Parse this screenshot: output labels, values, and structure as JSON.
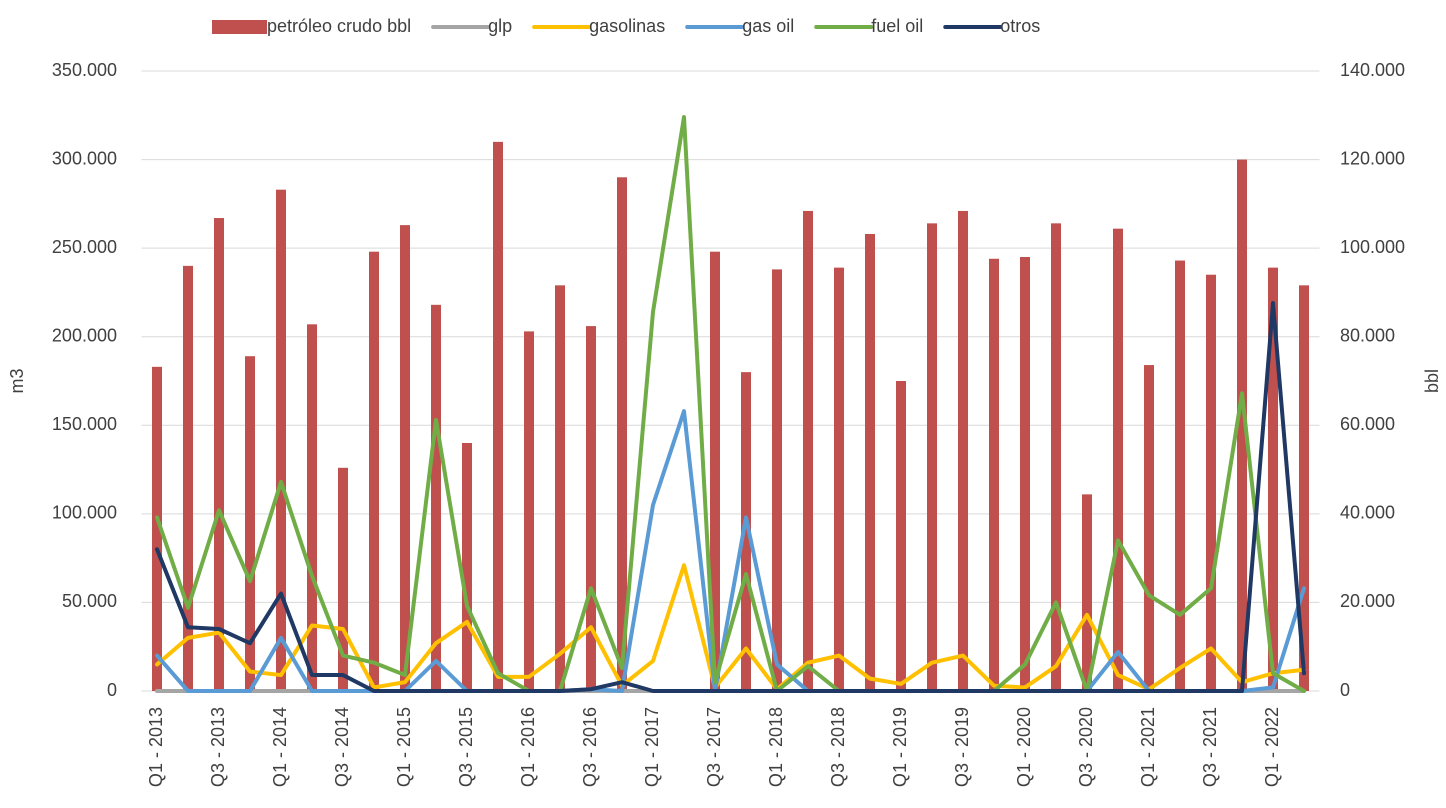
{
  "chart_data": {
    "type": "bar_line",
    "y_label": "m3",
    "y2_label": "bbl",
    "categories": [
      "Q1 - 2013",
      null,
      "Q3 - 2013",
      null,
      "Q1 - 2014",
      null,
      "Q3 - 2014",
      null,
      "Q1 - 2015",
      null,
      "Q3 - 2015",
      null,
      "Q1 - 2016",
      null,
      "Q3 - 2016",
      null,
      "Q1 - 2017",
      null,
      "Q3 - 2017",
      null,
      "Q1 - 2018",
      null,
      "Q3 - 2018",
      null,
      "Q1 - 2019",
      null,
      "Q3 - 2019",
      null,
      "Q1 - 2020",
      null,
      "Q3 - 2020",
      null,
      "Q1 - 2021",
      null,
      "Q3 - 2021",
      null,
      "Q1 - 2022",
      null
    ],
    "series": [
      {
        "name": "petróleo crudo bbl",
        "type": "bar",
        "axis": "y2",
        "color": "#c0504d",
        "values": [
          73200,
          96000,
          106800,
          75600,
          113200,
          82800,
          50400,
          99200,
          105200,
          87200,
          56000,
          124000,
          81200,
          91600,
          82400,
          116000,
          0,
          0,
          99200,
          72000,
          95200,
          108400,
          95600,
          103200,
          70000,
          105600,
          108400,
          97600,
          98000,
          105600,
          44400,
          104400,
          73600,
          97200,
          94000,
          120000,
          95600,
          91600
        ]
      },
      {
        "name": "glp",
        "type": "line",
        "color": "#a5a5a5",
        "values": [
          0,
          0,
          0,
          0,
          0,
          0,
          0,
          0,
          0,
          0,
          0,
          0,
          0,
          0,
          0,
          0,
          0,
          0,
          0,
          0,
          0,
          0,
          0,
          0,
          0,
          0,
          0,
          0,
          0,
          0,
          0,
          0,
          0,
          0,
          0,
          0,
          0,
          0
        ]
      },
      {
        "name": "gasolinas",
        "type": "line",
        "color": "#ffc000",
        "values": [
          15000,
          30000,
          33000,
          11000,
          9000,
          37000,
          35000,
          2000,
          5000,
          27000,
          39000,
          8000,
          8000,
          21000,
          36000,
          3000,
          17000,
          71000,
          2000,
          24000,
          1000,
          16000,
          20000,
          7000,
          4000,
          16000,
          20000,
          3000,
          2000,
          14000,
          43000,
          9000,
          1000,
          13000,
          24000,
          5000,
          10000,
          12000
        ]
      },
      {
        "name": "gas oil",
        "type": "line",
        "color": "#5b9bd5",
        "values": [
          20000,
          0,
          0,
          0,
          30000,
          0,
          0,
          0,
          0,
          17000,
          0,
          0,
          0,
          0,
          1000,
          0,
          105000,
          158000,
          0,
          98000,
          15000,
          0,
          0,
          0,
          0,
          0,
          0,
          0,
          0,
          0,
          0,
          22000,
          0,
          0,
          0,
          0,
          2000,
          58000
        ]
      },
      {
        "name": "fuel oil",
        "type": "line",
        "color": "#70ad47",
        "values": [
          98000,
          47000,
          102000,
          62000,
          118000,
          65000,
          20000,
          16000,
          9000,
          153000,
          48000,
          10000,
          0,
          0,
          58000,
          13000,
          214000,
          324000,
          5000,
          66000,
          0,
          14000,
          0,
          0,
          0,
          0,
          0,
          0,
          15000,
          50000,
          0,
          85000,
          54000,
          43000,
          58000,
          168000,
          10000,
          0
        ]
      },
      {
        "name": "otros",
        "type": "line",
        "color": "#203864",
        "values": [
          80000,
          36000,
          35000,
          27000,
          55000,
          9000,
          9000,
          0,
          0,
          0,
          0,
          0,
          0,
          0,
          1000,
          5000,
          0,
          0,
          0,
          0,
          0,
          0,
          0,
          0,
          0,
          0,
          0,
          0,
          0,
          0,
          0,
          0,
          0,
          0,
          0,
          0,
          219000,
          10000
        ]
      }
    ],
    "ylim": [
      0,
      350000
    ],
    "yticks": [
      0,
      {
        "value": 50000,
        "label": "50.000"
      },
      {
        "value": 100000,
        "label": "100.000"
      },
      {
        "value": 150000,
        "label": "150.000"
      },
      {
        "value": 200000,
        "label": "200.000"
      },
      {
        "value": 250000,
        "label": "250.000"
      },
      {
        "value": 300000,
        "label": "300.000"
      },
      {
        "value": 350000,
        "label": "350.000"
      }
    ],
    "y2lim": [
      0,
      140000
    ],
    "y2ticks": [
      0,
      {
        "value": 20000,
        "label": "20.000"
      },
      {
        "value": 40000,
        "label": "40.000"
      },
      {
        "value": 60000,
        "label": "60.000"
      },
      {
        "value": 80000,
        "label": "80.000"
      },
      {
        "value": 100000,
        "label": "100.000"
      },
      {
        "value": 120000,
        "label": "120.000"
      },
      {
        "value": 140000,
        "label": "140.000"
      }
    ],
    "grid": true,
    "legend": "top"
  }
}
